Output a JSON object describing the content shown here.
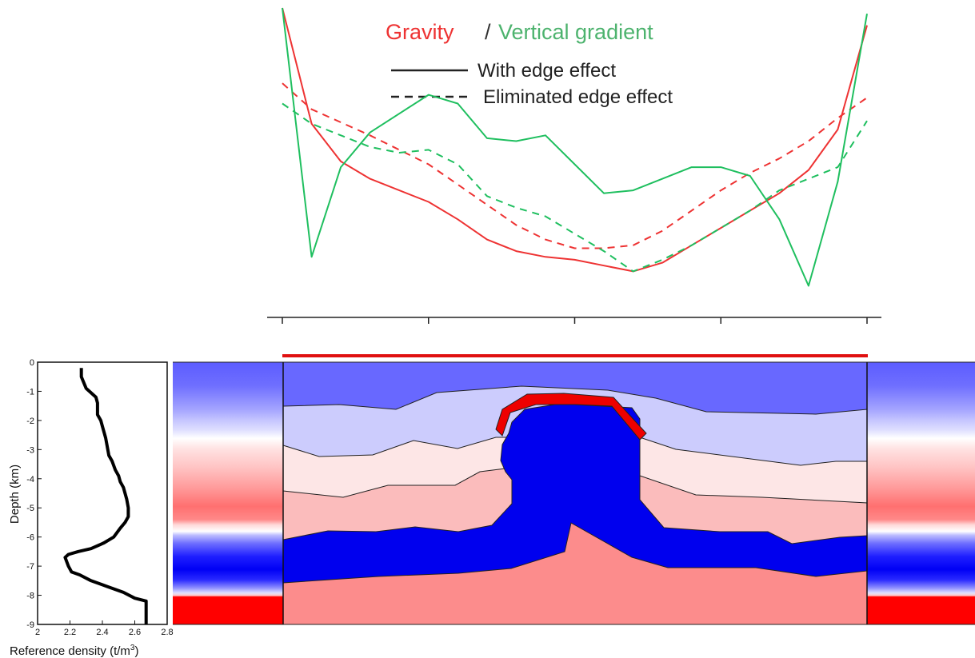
{
  "legend": {
    "gravity_label": "Gravity",
    "separator": "/",
    "gradient_label": "Vertical gradient",
    "solid_label": "With edge effect",
    "dashed_label": "Eliminated edge effect",
    "colors": {
      "gravity": "#ee3333",
      "gradient": "#1fbf5f",
      "line": "#222222"
    }
  },
  "profile": {
    "tick_count": 5,
    "source_color": "#e01010"
  },
  "density_panel": {
    "ylabel": "Depth (km)",
    "xlabel_text": "Reference density (t/m",
    "xlabel_sup": "3",
    "xlabel_close": ")",
    "xticks": [
      "2",
      "2.2",
      "2.4",
      "2.6",
      "2.8"
    ],
    "yticks": [
      "0",
      "-1",
      "-2",
      "-3",
      "-4",
      "-5",
      "-6",
      "-7",
      "-8",
      "-9"
    ]
  },
  "model": {
    "layer_colors": {
      "top": "#6868ff",
      "pale_blue": "#ccccfd",
      "pale_pink": "#fde6e6",
      "pink": "#fbbcbc",
      "dome": "#0000ee",
      "base": "#fc8c8c",
      "cap": "#ee0000"
    }
  },
  "chart_data": {
    "type": "line",
    "title": "Gravity / Vertical gradient",
    "xlabel": "",
    "ylabel": "",
    "series": [
      {
        "name": "Gravity — With edge effect",
        "x": [
          0,
          0.05,
          0.1,
          0.15,
          0.25,
          0.3,
          0.35,
          0.4,
          0.45,
          0.5,
          0.55,
          0.6,
          0.65,
          0.7,
          0.75,
          0.8,
          0.85,
          0.9,
          0.95,
          1.0
        ],
        "values": [
          1.0,
          0.6,
          0.47,
          0.41,
          0.33,
          0.27,
          0.2,
          0.16,
          0.14,
          0.13,
          0.11,
          0.09,
          0.12,
          0.18,
          0.24,
          0.3,
          0.36,
          0.44,
          0.58,
          0.94
        ]
      },
      {
        "name": "Gravity — Eliminated edge effect",
        "x": [
          0,
          0.05,
          0.15,
          0.25,
          0.3,
          0.35,
          0.4,
          0.45,
          0.5,
          0.55,
          0.6,
          0.65,
          0.7,
          0.75,
          0.8,
          0.85,
          0.9,
          0.95,
          1.0
        ],
        "values": [
          0.74,
          0.65,
          0.56,
          0.46,
          0.39,
          0.32,
          0.25,
          0.2,
          0.17,
          0.17,
          0.18,
          0.23,
          0.3,
          0.37,
          0.43,
          0.48,
          0.54,
          0.62,
          0.69
        ]
      },
      {
        "name": "Vertical gradient — With edge effect",
        "x": [
          0,
          0.05,
          0.1,
          0.15,
          0.25,
          0.3,
          0.35,
          0.4,
          0.45,
          0.5,
          0.55,
          0.6,
          0.65,
          0.7,
          0.75,
          0.8,
          0.85,
          0.9,
          0.95,
          1.0
        ],
        "values": [
          1.0,
          0.14,
          0.45,
          0.57,
          0.7,
          0.67,
          0.55,
          0.54,
          0.56,
          0.46,
          0.36,
          0.37,
          0.41,
          0.45,
          0.45,
          0.42,
          0.27,
          0.04,
          0.4,
          0.98
        ]
      },
      {
        "name": "Vertical gradient — Eliminated edge effect",
        "x": [
          0,
          0.05,
          0.15,
          0.2,
          0.25,
          0.3,
          0.35,
          0.4,
          0.45,
          0.5,
          0.55,
          0.6,
          0.65,
          0.7,
          0.75,
          0.8,
          0.85,
          0.9,
          0.95,
          1.0
        ],
        "values": [
          0.67,
          0.6,
          0.52,
          0.5,
          0.51,
          0.46,
          0.35,
          0.31,
          0.28,
          0.22,
          0.16,
          0.09,
          0.13,
          0.18,
          0.24,
          0.3,
          0.37,
          0.41,
          0.45,
          0.61
        ]
      }
    ]
  },
  "density_data": {
    "type": "line",
    "xlim": [
      2,
      2.8
    ],
    "ylim": [
      -9,
      0
    ],
    "x": [
      2.27,
      2.27,
      2.3,
      2.36,
      2.37,
      2.37,
      2.39,
      2.4,
      2.42,
      2.43,
      2.44,
      2.46,
      2.48,
      2.5,
      2.51,
      2.53,
      2.55,
      2.56,
      2.56,
      2.54,
      2.51,
      2.47,
      2.41,
      2.33,
      2.25,
      2.19,
      2.17,
      2.19,
      2.21,
      2.26,
      2.33,
      2.43,
      2.53,
      2.6,
      2.67,
      2.67,
      2.67
    ],
    "depth": [
      -0.2,
      -0.5,
      -0.9,
      -1.2,
      -1.4,
      -1.8,
      -2.0,
      -2.2,
      -2.6,
      -2.9,
      -3.2,
      -3.4,
      -3.7,
      -3.9,
      -4.1,
      -4.3,
      -4.7,
      -5.0,
      -5.3,
      -5.5,
      -5.7,
      -6.0,
      -6.2,
      -6.4,
      -6.5,
      -6.6,
      -6.7,
      -7.0,
      -7.2,
      -7.3,
      -7.5,
      -7.7,
      -7.9,
      -8.1,
      -8.2,
      -8.6,
      -9.0
    ]
  }
}
